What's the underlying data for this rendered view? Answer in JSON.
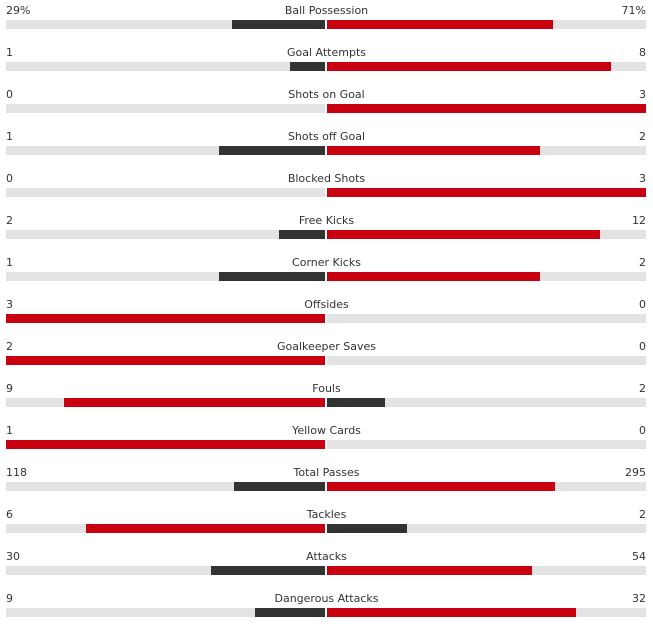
{
  "colors": {
    "winner": "#c8000f",
    "loser": "#333333",
    "track": "#e3e3e3"
  },
  "stats": [
    {
      "name": "Ball Possession",
      "home": "29%",
      "away": "71%",
      "home_value": 29,
      "away_value": 71
    },
    {
      "name": "Goal Attempts",
      "home": "1",
      "away": "8",
      "home_value": 1,
      "away_value": 8
    },
    {
      "name": "Shots on Goal",
      "home": "0",
      "away": "3",
      "home_value": 0,
      "away_value": 3
    },
    {
      "name": "Shots off Goal",
      "home": "1",
      "away": "2",
      "home_value": 1,
      "away_value": 2
    },
    {
      "name": "Blocked Shots",
      "home": "0",
      "away": "3",
      "home_value": 0,
      "away_value": 3
    },
    {
      "name": "Free Kicks",
      "home": "2",
      "away": "12",
      "home_value": 2,
      "away_value": 12
    },
    {
      "name": "Corner Kicks",
      "home": "1",
      "away": "2",
      "home_value": 1,
      "away_value": 2
    },
    {
      "name": "Offsides",
      "home": "3",
      "away": "0",
      "home_value": 3,
      "away_value": 0
    },
    {
      "name": "Goalkeeper Saves",
      "home": "2",
      "away": "0",
      "home_value": 2,
      "away_value": 0
    },
    {
      "name": "Fouls",
      "home": "9",
      "away": "2",
      "home_value": 9,
      "away_value": 2
    },
    {
      "name": "Yellow Cards",
      "home": "1",
      "away": "0",
      "home_value": 1,
      "away_value": 0
    },
    {
      "name": "Total Passes",
      "home": "118",
      "away": "295",
      "home_value": 118,
      "away_value": 295
    },
    {
      "name": "Tackles",
      "home": "6",
      "away": "2",
      "home_value": 6,
      "away_value": 2
    },
    {
      "name": "Attacks",
      "home": "30",
      "away": "54",
      "home_value": 30,
      "away_value": 54
    },
    {
      "name": "Dangerous Attacks",
      "home": "9",
      "away": "32",
      "home_value": 9,
      "away_value": 32
    }
  ]
}
